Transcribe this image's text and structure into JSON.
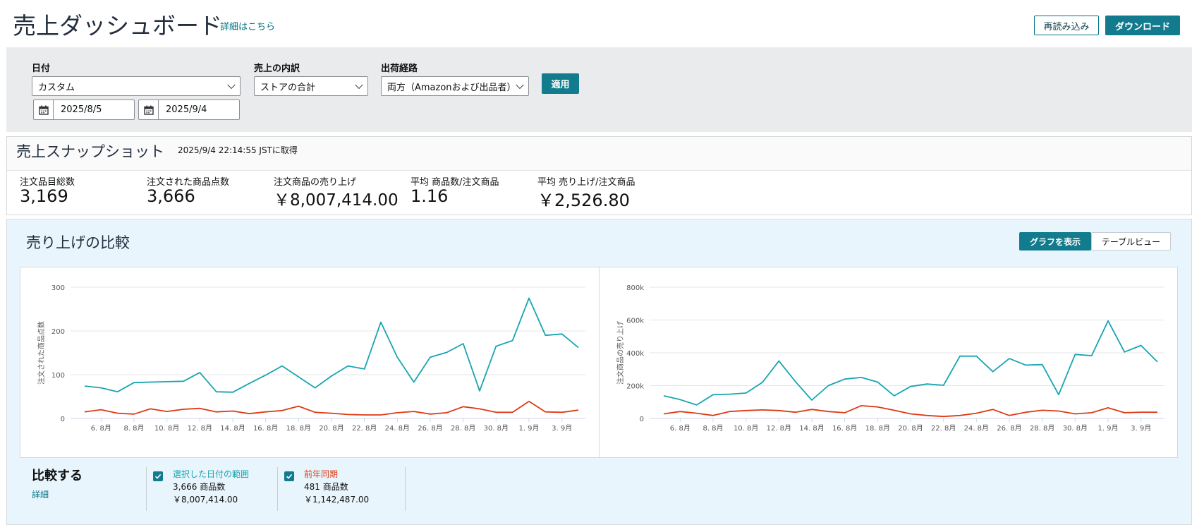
{
  "header": {
    "title": "売上ダッシュボード",
    "detail_link": "詳細はこちら",
    "reload_button": "再読み込み",
    "download_button": "ダウンロード"
  },
  "filters": {
    "date_label": "日付",
    "date_value": "カスタム",
    "start_date": "2025/8/5",
    "end_date": "2025/9/4",
    "breakdown_label": "売上の内訳",
    "breakdown_value": "ストアの合計",
    "channel_label": "出荷経路",
    "channel_value": "両方（Amazonおよび出品者）",
    "apply_button": "適用"
  },
  "snapshot": {
    "title": "売上スナップショット",
    "timestamp": "2025/9/4 22:14:55 JSTに取得",
    "metrics": [
      {
        "label": "注文品目総数",
        "value": "3,169"
      },
      {
        "label": "注文された商品点数",
        "value": "3,666"
      },
      {
        "label": "注文商品の売り上げ",
        "value": "￥8,007,414.00"
      },
      {
        "label": "平均 商品数/注文商品",
        "value": "1.16"
      },
      {
        "label": "平均 売り上げ/注文商品",
        "value": "￥2,526.80"
      }
    ]
  },
  "compare": {
    "title": "売り上げの比較",
    "graph_view_button": "グラフを表示",
    "table_view_button": "テーブルビュー",
    "compare_heading": "比較する",
    "details_link": "詳細",
    "legend": [
      {
        "name": "選択した日付の範囲",
        "units": "3,666",
        "units_suffix": "商品数",
        "sales": "￥8,007,414.00",
        "color": "#17a5b1"
      },
      {
        "name": "前年同期",
        "units": "481",
        "units_suffix": "商品数",
        "sales": "￥1,142,487.00",
        "color": "#de3a14"
      }
    ]
  },
  "chart_data": [
    {
      "type": "line",
      "ylabel": "注文された商品点数",
      "ylim": [
        0,
        300
      ],
      "yticks": [
        0,
        100,
        200,
        300
      ],
      "ytick_labels": [
        "0",
        "100",
        "200",
        "300"
      ],
      "xtick_labels": [
        "6. 8月",
        "8. 8月",
        "10. 8月",
        "12. 8月",
        "14. 8月",
        "16. 8月",
        "18. 8月",
        "20. 8月",
        "22. 8月",
        "24. 8月",
        "26. 8月",
        "28. 8月",
        "30. 8月",
        "1. 9月",
        "3. 9月"
      ],
      "x": [
        "8/5",
        "8/6",
        "8/7",
        "8/8",
        "8/9",
        "8/10",
        "8/11",
        "8/12",
        "8/13",
        "8/14",
        "8/15",
        "8/16",
        "8/17",
        "8/18",
        "8/19",
        "8/20",
        "8/21",
        "8/22",
        "8/23",
        "8/24",
        "8/25",
        "8/26",
        "8/27",
        "8/28",
        "8/29",
        "8/30",
        "8/31",
        "9/1",
        "9/2",
        "9/3",
        "9/4"
      ],
      "series": [
        {
          "color": "#17a5b1",
          "values": [
            74,
            70,
            61,
            82,
            83,
            84,
            85,
            105,
            61,
            60,
            80,
            99,
            120,
            95,
            70,
            97,
            120,
            113,
            220,
            140,
            83,
            140,
            151,
            171,
            63,
            165,
            178,
            275,
            190,
            193,
            162
          ]
        },
        {
          "color": "#de3a14",
          "values": [
            15,
            20,
            12,
            10,
            22,
            16,
            21,
            23,
            15,
            17,
            11,
            15,
            18,
            28,
            14,
            12,
            9,
            8,
            8,
            13,
            16,
            10,
            13,
            27,
            22,
            14,
            14,
            39,
            15,
            14,
            19
          ]
        }
      ]
    },
    {
      "type": "line",
      "ylabel": "注文商品の売り上げ",
      "ylim": [
        0,
        800000
      ],
      "yticks": [
        0,
        200000,
        400000,
        600000,
        800000
      ],
      "ytick_labels": [
        "0",
        "200k",
        "400k",
        "600k",
        "800k"
      ],
      "xtick_labels": [
        "6. 8月",
        "8. 8月",
        "10. 8月",
        "12. 8月",
        "14. 8月",
        "16. 8月",
        "18. 8月",
        "20. 8月",
        "22. 8月",
        "24. 8月",
        "26. 8月",
        "28. 8月",
        "30. 8月",
        "1. 9月",
        "3. 9月"
      ],
      "x": [
        "8/5",
        "8/6",
        "8/7",
        "8/8",
        "8/9",
        "8/10",
        "8/11",
        "8/12",
        "8/13",
        "8/14",
        "8/15",
        "8/16",
        "8/17",
        "8/18",
        "8/19",
        "8/20",
        "8/21",
        "8/22",
        "8/23",
        "8/24",
        "8/25",
        "8/26",
        "8/27",
        "8/28",
        "8/29",
        "8/30",
        "8/31",
        "9/1",
        "9/2",
        "9/3",
        "9/4"
      ],
      "series": [
        {
          "color": "#17a5b1",
          "values": [
            138000,
            115000,
            82000,
            145000,
            148000,
            155000,
            220000,
            350000,
            225000,
            112000,
            200000,
            240000,
            250000,
            222000,
            138000,
            195000,
            210000,
            202000,
            380000,
            380000,
            285000,
            365000,
            325000,
            328000,
            145000,
            390000,
            383000,
            595000,
            405000,
            445000,
            345000
          ]
        },
        {
          "color": "#de3a14",
          "values": [
            28000,
            42000,
            32000,
            18000,
            42000,
            48000,
            52000,
            48000,
            38000,
            55000,
            42000,
            35000,
            78000,
            70000,
            50000,
            28000,
            18000,
            12000,
            18000,
            32000,
            55000,
            18000,
            38000,
            50000,
            45000,
            28000,
            35000,
            65000,
            35000,
            38000,
            38000
          ]
        }
      ]
    }
  ]
}
